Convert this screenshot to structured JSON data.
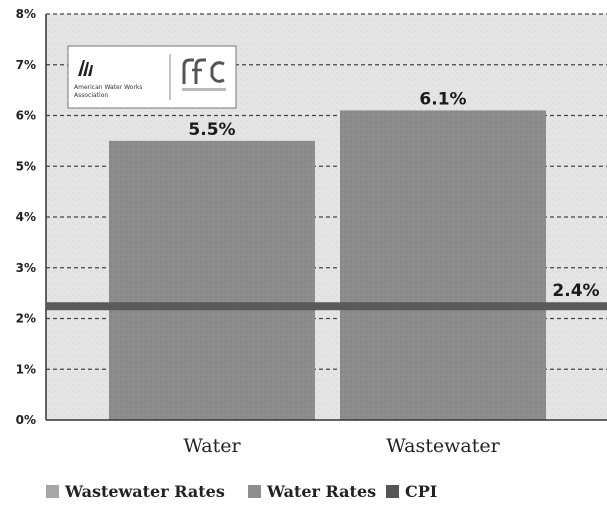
{
  "chart_data": {
    "type": "bar",
    "categories": [
      "Water",
      "Wastewater"
    ],
    "series": [
      {
        "name": "Water Rates",
        "values": [
          5.5,
          null
        ]
      },
      {
        "name": "Wastewater Rates",
        "values": [
          null,
          6.1
        ]
      }
    ],
    "bar_labels": [
      "5.5%",
      "6.1%"
    ],
    "reference_line": {
      "name": "CPI",
      "value": 2.4,
      "label": "2.4%"
    },
    "ylim": [
      0,
      8
    ],
    "y_ticks": [
      "0%",
      "1%",
      "2%",
      "3%",
      "4%",
      "5%",
      "6%",
      "7%",
      "8%"
    ],
    "grid": "dashed horizontal",
    "legend": {
      "placement": "bottom",
      "items": [
        {
          "label": "Wastewater Rates",
          "color": "#a6a6a6"
        },
        {
          "label": "Water Rates",
          "color": "#8e8e8e"
        },
        {
          "label": "CPI",
          "color": "#555555"
        }
      ]
    },
    "colors": {
      "bar": "#8c8c8c",
      "cpi_line": "#5a5a5a",
      "background": "#e6e6e6"
    }
  },
  "logo": {
    "text_line1": "American Water Works",
    "text_line2": "Association"
  }
}
